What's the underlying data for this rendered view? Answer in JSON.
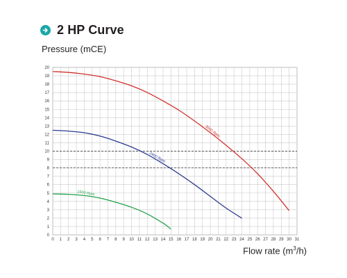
{
  "header": {
    "title": "2 HP Curve",
    "icon": "arrow-right-circle-icon",
    "accent_color": "#1aa7a7"
  },
  "chart_data": {
    "type": "line",
    "title": "2 HP Curve",
    "ylabel": "Pressure (mCE)",
    "xlabel_main": "Flow rate (m",
    "xlabel_sup": "3",
    "xlabel_end": "/h)",
    "xlim": [
      0,
      31
    ],
    "ylim": [
      0,
      20
    ],
    "x_ticks": [
      "0",
      "1",
      "2",
      "3",
      "4",
      "5",
      "6",
      "7",
      "8",
      "9",
      "10",
      "11",
      "12",
      "13",
      "14",
      "15",
      "16",
      "17",
      "18",
      "19",
      "20",
      "21",
      "22",
      "23",
      "24",
      "25",
      "26",
      "27",
      "28",
      "29",
      "30",
      "31"
    ],
    "y_ticks": [
      "0",
      "1",
      "2",
      "3",
      "4",
      "5",
      "6",
      "7",
      "8",
      "9",
      "10",
      "11",
      "12",
      "13",
      "14",
      "15",
      "16",
      "17",
      "18",
      "19",
      "20"
    ],
    "grid": true,
    "reference_lines": [
      10,
      8
    ],
    "series": [
      {
        "name": "3000 Rpm",
        "color": "#d0312d",
        "x": [
          0,
          2,
          4,
          6,
          8,
          10,
          12,
          14,
          16,
          18,
          20,
          22,
          24,
          26,
          28,
          30
        ],
        "y": [
          19.5,
          19.4,
          19.2,
          18.9,
          18.4,
          17.8,
          17.0,
          16.0,
          14.9,
          13.6,
          12.2,
          10.7,
          9.1,
          7.3,
          5.2,
          2.9
        ]
      },
      {
        "name": "2400 Rpm",
        "color": "#2b3a8f",
        "x": [
          0,
          2,
          4,
          6,
          8,
          10,
          12,
          14,
          16,
          18,
          20,
          22,
          24
        ],
        "y": [
          12.5,
          12.4,
          12.2,
          11.8,
          11.2,
          10.5,
          9.6,
          8.5,
          7.3,
          6.0,
          4.6,
          3.2,
          2.0
        ]
      },
      {
        "name": "1500 Rpm",
        "color": "#22a14a",
        "x": [
          0,
          2,
          4,
          6,
          8,
          10,
          12,
          14,
          15
        ],
        "y": [
          4.9,
          4.85,
          4.7,
          4.4,
          3.9,
          3.3,
          2.5,
          1.4,
          0.7
        ]
      }
    ]
  }
}
